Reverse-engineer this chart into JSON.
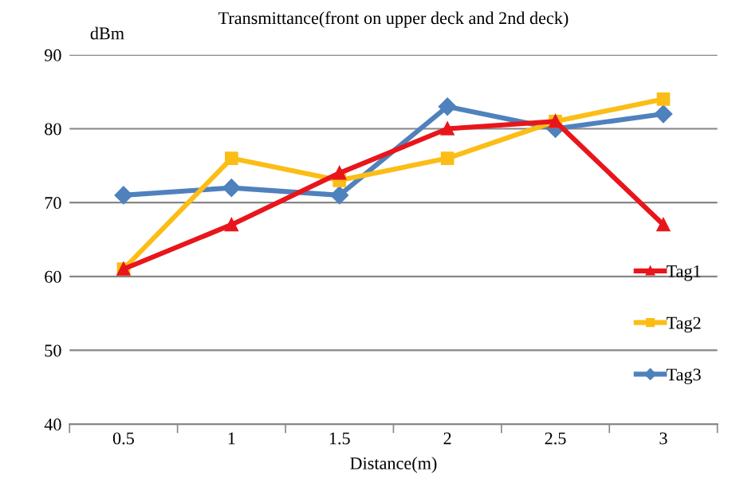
{
  "chart_data": {
    "type": "line",
    "title": "Transmittance(front on upper deck and 2nd deck)",
    "xlabel": "Distance(m)",
    "ylabel": "dBm",
    "categories": [
      "0.5",
      "1",
      "1.5",
      "2",
      "2.5",
      "3"
    ],
    "series": [
      {
        "name": "Tag1",
        "color": "#e8161b",
        "marker": "triangle",
        "values": [
          61,
          67,
          74,
          80,
          81,
          67
        ]
      },
      {
        "name": "Tag2",
        "color": "#fbbd16",
        "marker": "square",
        "values": [
          61,
          76,
          73,
          76,
          81,
          84
        ]
      },
      {
        "name": "Tag3",
        "color": "#4f81bd",
        "marker": "diamond",
        "values": [
          71,
          72,
          71,
          83,
          80,
          82
        ]
      }
    ],
    "ylim": [
      40,
      90
    ],
    "yticks": [
      40,
      50,
      60,
      70,
      80,
      90
    ],
    "grid": "y",
    "legend": "right",
    "line_style": "solid"
  }
}
